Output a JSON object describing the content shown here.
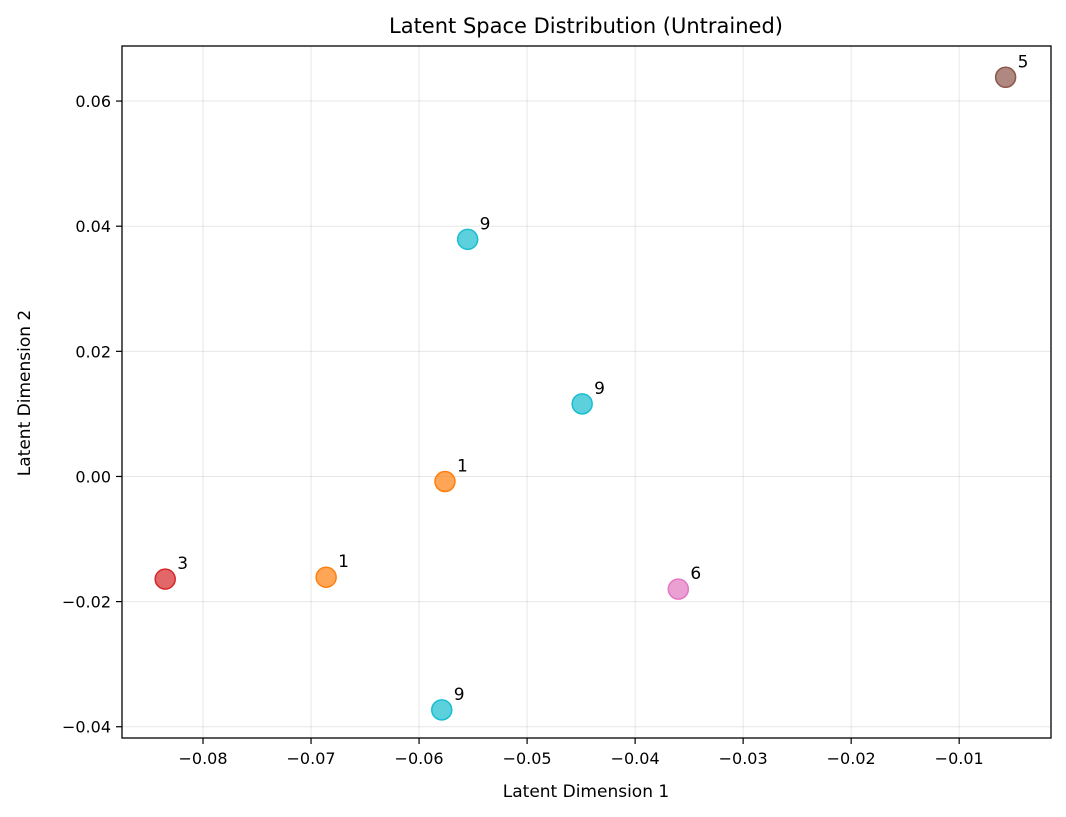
{
  "chart_data": {
    "type": "scatter",
    "title": "Latent Space Distribution (Untrained)",
    "xlabel": "Latent Dimension 1",
    "ylabel": "Latent Dimension 2",
    "xlim": [
      -0.0875,
      -0.0015
    ],
    "ylim": [
      -0.0418,
      0.0688
    ],
    "grid": true,
    "x_ticks": [
      -0.08,
      -0.07,
      -0.06,
      -0.05,
      -0.04,
      -0.03,
      -0.02,
      -0.01
    ],
    "x_tick_labels": [
      "−0.08",
      "−0.07",
      "−0.06",
      "−0.05",
      "−0.04",
      "−0.03",
      "−0.02",
      "−0.01"
    ],
    "y_ticks": [
      -0.04,
      -0.02,
      0.0,
      0.02,
      0.04,
      0.06
    ],
    "y_tick_labels": [
      "−0.04",
      "−0.02",
      "0.00",
      "0.02",
      "0.04",
      "0.06"
    ],
    "points": [
      {
        "x": -0.0835,
        "y": -0.0164,
        "label": "3",
        "color": "#d62728"
      },
      {
        "x": -0.0686,
        "y": -0.0161,
        "label": "1",
        "color": "#ff7f0e"
      },
      {
        "x": -0.0576,
        "y": -0.0008,
        "label": "1",
        "color": "#ff7f0e"
      },
      {
        "x": -0.0555,
        "y": 0.0379,
        "label": "9",
        "color": "#17becf"
      },
      {
        "x": -0.0449,
        "y": 0.0116,
        "label": "9",
        "color": "#17becf"
      },
      {
        "x": -0.0579,
        "y": -0.0373,
        "label": "9",
        "color": "#17becf"
      },
      {
        "x": -0.036,
        "y": -0.018,
        "label": "6",
        "color": "#e377c2"
      },
      {
        "x": -0.0057,
        "y": 0.0638,
        "label": "5",
        "color": "#8c564b"
      }
    ]
  }
}
